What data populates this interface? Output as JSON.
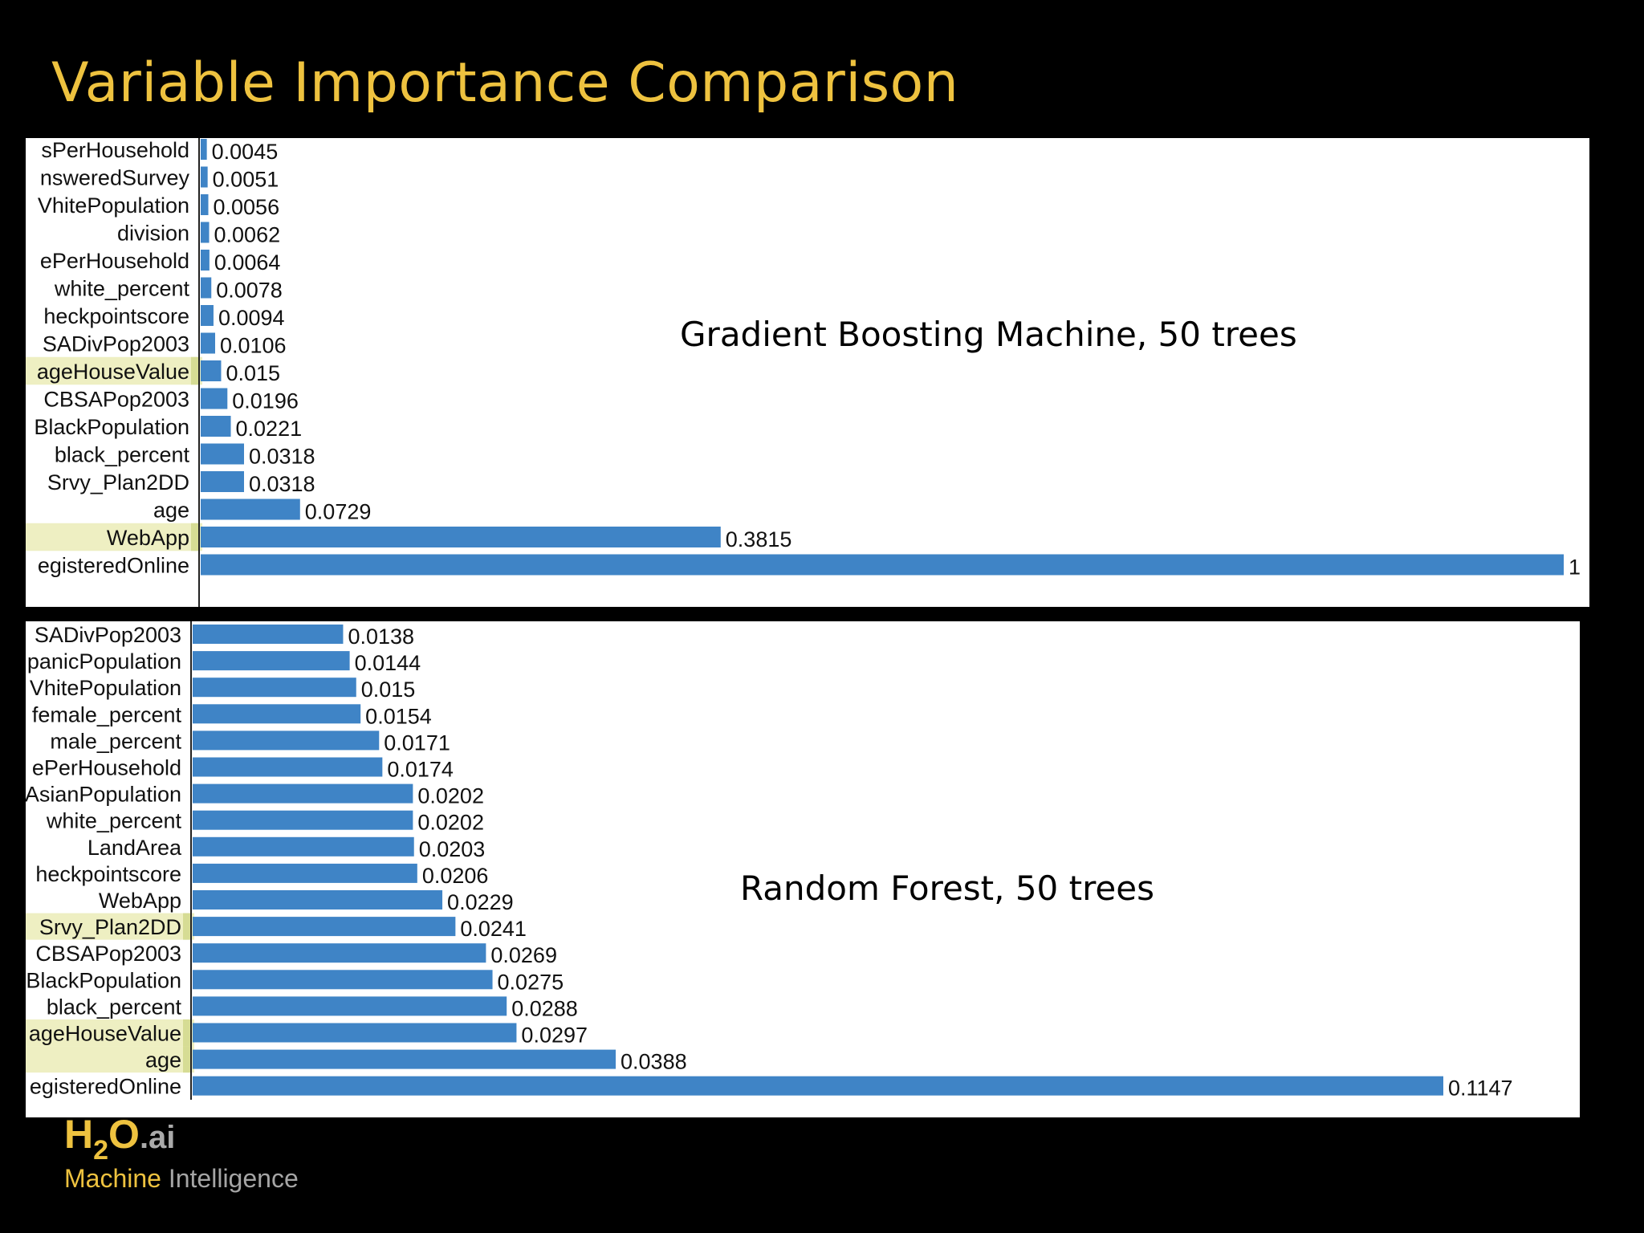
{
  "slide": {
    "title": "Variable Importance Comparison"
  },
  "colors": {
    "background": "#000000",
    "title": "#eec23f",
    "bar": "#3f84c6",
    "highlight": "#eeefc2",
    "highlight_edge": "#d6dc94"
  },
  "brand": {
    "h": "H",
    "two": "2",
    "o": "O",
    "ai": ".ai",
    "line1": "Machine",
    "line2": "Intelligence"
  },
  "chart_data": [
    {
      "type": "bar",
      "orientation": "horizontal",
      "annotation": "Gradient Boosting Machine, 50 trees",
      "xlim": [
        0,
        1
      ],
      "categories": [
        "sPerHousehold",
        "nsweredSurvey",
        "VhitePopulation",
        "division",
        "ePerHousehold",
        "white_percent",
        "heckpointscore",
        "SADivPop2003",
        "ageHouseValue",
        "CBSAPop2003",
        "BlackPopulation",
        "black_percent",
        "Srvy_Plan2DD",
        "age",
        "WebApp",
        "egisteredOnline"
      ],
      "values": [
        0.0045,
        0.0051,
        0.0056,
        0.0062,
        0.0064,
        0.0078,
        0.0094,
        0.0106,
        0.015,
        0.0196,
        0.0221,
        0.0318,
        0.0318,
        0.0729,
        0.3815,
        1
      ],
      "value_labels": [
        "0.0045",
        "0.0051",
        "0.0056",
        "0.0062",
        "0.0064",
        "0.0078",
        "0.0094",
        "0.0106",
        "0.015",
        "0.0196",
        "0.0221",
        "0.0318",
        "0.0318",
        "0.0729",
        "0.3815",
        "1"
      ],
      "highlighted": [
        "ageHouseValue",
        "WebApp"
      ]
    },
    {
      "type": "bar",
      "orientation": "horizontal",
      "annotation": "Random Forest, 50 trees",
      "xlim": [
        0,
        0.1147
      ],
      "categories": [
        "SADivPop2003",
        "panicPopulation",
        "VhitePopulation",
        "female_percent",
        "male_percent",
        "ePerHousehold",
        "AsianPopulation",
        "white_percent",
        "LandArea",
        "heckpointscore",
        "WebApp",
        "Srvy_Plan2DD",
        "CBSAPop2003",
        "BlackPopulation",
        "black_percent",
        "ageHouseValue",
        "age",
        "egisteredOnline"
      ],
      "values": [
        0.0138,
        0.0144,
        0.015,
        0.0154,
        0.0171,
        0.0174,
        0.0202,
        0.0202,
        0.0203,
        0.0206,
        0.0229,
        0.0241,
        0.0269,
        0.0275,
        0.0288,
        0.0297,
        0.0388,
        0.1147
      ],
      "value_labels": [
        "0.0138",
        "0.0144",
        "0.015",
        "0.0154",
        "0.0171",
        "0.0174",
        "0.0202",
        "0.0202",
        "0.0203",
        "0.0206",
        "0.0229",
        "0.0241",
        "0.0269",
        "0.0275",
        "0.0288",
        "0.0297",
        "0.0388",
        "0.1147"
      ],
      "highlighted": [
        "Srvy_Plan2DD",
        "ageHouseValue",
        "age"
      ]
    }
  ]
}
